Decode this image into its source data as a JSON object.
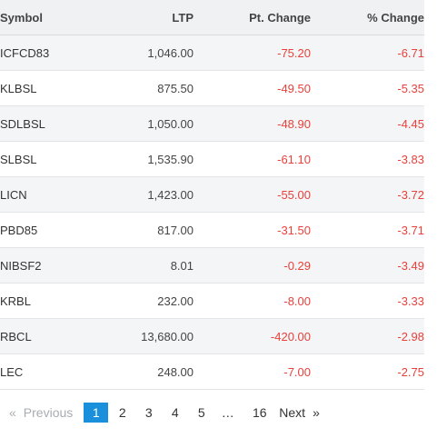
{
  "table": {
    "headers": {
      "symbol": "Symbol",
      "ltp": "LTP",
      "pt_change": "Pt. Change",
      "pct_change": "% Change"
    },
    "rows": [
      {
        "symbol": "ICFCD83",
        "ltp": "1,046.00",
        "pt_change": "-75.20",
        "pct_change": "-6.71"
      },
      {
        "symbol": "KLBSL",
        "ltp": "875.50",
        "pt_change": "-49.50",
        "pct_change": "-5.35"
      },
      {
        "symbol": "SDLBSL",
        "ltp": "1,050.00",
        "pt_change": "-48.90",
        "pct_change": "-4.45"
      },
      {
        "symbol": "SLBSL",
        "ltp": "1,535.90",
        "pt_change": "-61.10",
        "pct_change": "-3.83"
      },
      {
        "symbol": "LICN",
        "ltp": "1,423.00",
        "pt_change": "-55.00",
        "pct_change": "-3.72"
      },
      {
        "symbol": "PBD85",
        "ltp": "817.00",
        "pt_change": "-31.50",
        "pct_change": "-3.71"
      },
      {
        "symbol": "NIBSF2",
        "ltp": "8.01",
        "pt_change": "-0.29",
        "pct_change": "-3.49"
      },
      {
        "symbol": "KRBL",
        "ltp": "232.00",
        "pt_change": "-8.00",
        "pct_change": "-3.33"
      },
      {
        "symbol": "RBCL",
        "ltp": "13,680.00",
        "pt_change": "-420.00",
        "pct_change": "-2.98"
      },
      {
        "symbol": "LEC",
        "ltp": "248.00",
        "pt_change": "-7.00",
        "pct_change": "-2.75"
      }
    ],
    "colors": {
      "negative": "#e8413b",
      "header_bg": "#f0f1f3",
      "stripe_bg": "#f4f5f6"
    }
  },
  "pagination": {
    "prev_arrow": "«",
    "prev_label": "Previous",
    "pages": [
      "1",
      "2",
      "3",
      "4",
      "5"
    ],
    "ellipsis": "…",
    "last_page": "16",
    "next_label": "Next",
    "next_arrow": "»",
    "current_page": "1",
    "active_color": "#1a8fdc"
  }
}
